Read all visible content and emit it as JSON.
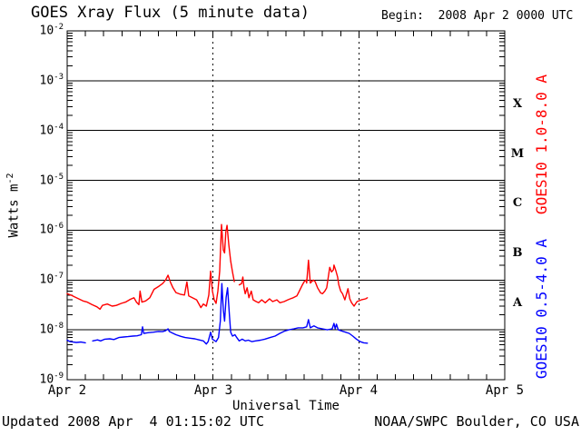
{
  "header": {
    "title": "GOES Xray Flux (5 minute data)",
    "begin": "Begin:  2008 Apr 2 0000 UTC"
  },
  "footer": {
    "updated": "Updated 2008 Apr  4 01:15:02 UTC",
    "source": "NOAA/SWPC Boulder, CO USA"
  },
  "colors": {
    "long_channel": "#ff0000",
    "short_channel": "#0000ff",
    "axis": "#000000",
    "background": "#ffffff"
  },
  "chart_data": {
    "type": "line",
    "title": "GOES Xray Flux (5 minute data)",
    "xlabel": "Universal Time",
    "ylabel_base": "Watts m",
    "ylabel_exp": "-2",
    "y_scale": "log",
    "ylim": [
      1e-09,
      0.01
    ],
    "y_ticks": [
      {
        "base": "10",
        "exp": "-2"
      },
      {
        "base": "10",
        "exp": "-3"
      },
      {
        "base": "10",
        "exp": "-4"
      },
      {
        "base": "10",
        "exp": "-5"
      },
      {
        "base": "10",
        "exp": "-6"
      },
      {
        "base": "10",
        "exp": "-7"
      },
      {
        "base": "10",
        "exp": "-8"
      },
      {
        "base": "10",
        "exp": "-9"
      }
    ],
    "x_unit": "hours since 2008 Apr 2 0000 UTC",
    "xlim_hours": [
      0,
      72
    ],
    "x_tick_labels": [
      "Apr 2",
      "Apr 3",
      "Apr 4",
      "Apr 5"
    ],
    "x_tick_hours": [
      0,
      24,
      48,
      72
    ],
    "day_marker_hours": [
      24,
      48
    ],
    "hour_tick_step": 3,
    "grid": "horizontal decade lines, dotted vertical day lines",
    "flare_classes": [
      "X",
      "M",
      "C",
      "B",
      "A"
    ],
    "flare_class_center_exponents": [
      -3.5,
      -4.5,
      -5.5,
      -6.5,
      -7.5
    ],
    "series": [
      {
        "name": "GOES10 1.0-8.0 A",
        "color": "#ff0000",
        "points": [
          [
            0,
            5.3e-08
          ],
          [
            0.6,
            5e-08
          ],
          [
            1.2,
            4.6e-08
          ],
          [
            1.9,
            4.2e-08
          ],
          [
            2.6,
            3.8e-08
          ],
          [
            3.3,
            3.6e-08
          ],
          [
            4.1,
            3.2e-08
          ],
          [
            4.9,
            2.9e-08
          ],
          [
            5.4,
            2.6e-08
          ],
          [
            5.8,
            3.1e-08
          ],
          [
            6.6,
            3.3e-08
          ],
          [
            7.4,
            3e-08
          ],
          [
            8.1,
            3.1e-08
          ],
          [
            8.9,
            3.4e-08
          ],
          [
            9.6,
            3.6e-08
          ],
          [
            10.4,
            4.1e-08
          ],
          [
            11.0,
            4.4e-08
          ],
          [
            11.4,
            3.6e-08
          ],
          [
            11.8,
            3.2e-08
          ],
          [
            12.0,
            6e-08
          ],
          [
            12.3,
            3.6e-08
          ],
          [
            12.9,
            3.8e-08
          ],
          [
            13.6,
            4.4e-08
          ],
          [
            14.3,
            6.5e-08
          ],
          [
            15.1,
            7.5e-08
          ],
          [
            15.7,
            8.5e-08
          ],
          [
            16.2,
            1e-07
          ],
          [
            16.6,
            1.25e-07
          ],
          [
            17.0,
            9e-08
          ],
          [
            17.4,
            7e-08
          ],
          [
            17.9,
            5.6e-08
          ],
          [
            18.6,
            5.2e-08
          ],
          [
            19.3,
            5e-08
          ],
          [
            19.7,
            9.2e-08
          ],
          [
            20.0,
            4.8e-08
          ],
          [
            20.6,
            4.4e-08
          ],
          [
            21.3,
            4e-08
          ],
          [
            22.0,
            2.8e-08
          ],
          [
            22.4,
            3.3e-08
          ],
          [
            22.9,
            3e-08
          ],
          [
            23.3,
            5e-08
          ],
          [
            23.6,
            1.5e-07
          ],
          [
            23.9,
            6e-08
          ],
          [
            24.2,
            4e-08
          ],
          [
            24.5,
            3.4e-08
          ],
          [
            24.8,
            6e-08
          ],
          [
            25.1,
            1.5e-07
          ],
          [
            25.4,
            1.3e-06
          ],
          [
            25.7,
            4e-07
          ],
          [
            25.9,
            3.5e-07
          ],
          [
            26.1,
            9e-07
          ],
          [
            26.3,
            1.25e-06
          ],
          [
            26.6,
            5e-07
          ],
          [
            26.9,
            2.4e-07
          ],
          [
            27.2,
            1.45e-07
          ],
          [
            27.5,
            9.3e-08
          ],
          null,
          [
            28.3,
            8e-08
          ],
          [
            28.7,
            8.5e-08
          ],
          [
            28.9,
            1.15e-07
          ],
          [
            29.1,
            7e-08
          ],
          [
            29.3,
            5.3e-08
          ],
          [
            29.6,
            7e-08
          ],
          [
            29.9,
            4.4e-08
          ],
          [
            30.3,
            6e-08
          ],
          [
            30.6,
            4e-08
          ],
          [
            31.1,
            3.7e-08
          ],
          [
            31.5,
            3.5e-08
          ],
          [
            32.0,
            4e-08
          ],
          [
            32.6,
            3.5e-08
          ],
          [
            33.3,
            4.2e-08
          ],
          [
            33.8,
            3.7e-08
          ],
          [
            34.5,
            4e-08
          ],
          [
            35.0,
            3.5e-08
          ],
          [
            35.7,
            3.7e-08
          ],
          [
            36.3,
            4e-08
          ],
          [
            36.7,
            4.2e-08
          ],
          [
            37.2,
            4.4e-08
          ],
          [
            37.8,
            4.8e-08
          ],
          [
            38.2,
            6e-08
          ],
          [
            38.7,
            8e-08
          ],
          [
            39.0,
            9.3e-08
          ],
          [
            39.3,
            1e-07
          ],
          [
            39.4,
            8.7e-08
          ],
          [
            39.7,
            2.5e-07
          ],
          [
            40.0,
            8.7e-08
          ],
          [
            40.5,
            1e-07
          ],
          [
            40.8,
            9.3e-08
          ],
          [
            41.2,
            7e-08
          ],
          [
            41.7,
            5.5e-08
          ],
          [
            42.0,
            5.3e-08
          ],
          [
            42.4,
            6e-08
          ],
          [
            42.7,
            7e-08
          ],
          [
            43.2,
            1.8e-07
          ],
          [
            43.5,
            1.45e-07
          ],
          [
            43.8,
            1.6e-07
          ],
          [
            43.9,
            2e-07
          ],
          [
            44.2,
            1.55e-07
          ],
          [
            44.5,
            1.15e-07
          ],
          [
            44.7,
            8e-08
          ],
          [
            45.0,
            6e-08
          ],
          [
            45.3,
            5.3e-08
          ],
          [
            45.7,
            4e-08
          ],
          [
            46.2,
            6.7e-08
          ],
          [
            46.5,
            4.2e-08
          ],
          [
            46.8,
            3.5e-08
          ],
          [
            47.2,
            3e-08
          ],
          [
            47.7,
            3.7e-08
          ],
          [
            48.4,
            4e-08
          ],
          [
            49.1,
            4.2e-08
          ],
          [
            49.4,
            4.4e-08
          ]
        ]
      },
      {
        "name": "GOES10 0.5-4.0 A",
        "color": "#0000ff",
        "points": [
          [
            0,
            6.2e-09
          ],
          [
            0.5,
            5.8e-09
          ],
          [
            1.5,
            5.6e-09
          ],
          [
            2.3,
            5.7e-09
          ],
          [
            3.0,
            5.5e-09
          ],
          null,
          [
            4.2,
            6e-09
          ],
          [
            5.0,
            6.3e-09
          ],
          [
            5.5,
            6e-09
          ],
          [
            6.2,
            6.5e-09
          ],
          [
            7.0,
            6.6e-09
          ],
          [
            7.7,
            6.4e-09
          ],
          [
            8.5,
            7e-09
          ],
          [
            9.3,
            7.2e-09
          ],
          [
            10.0,
            7.3e-09
          ],
          [
            10.8,
            7.5e-09
          ],
          [
            11.5,
            7.6e-09
          ],
          [
            12.2,
            8e-09
          ],
          [
            12.4,
            1.15e-08
          ],
          [
            12.6,
            8.5e-09
          ],
          [
            13.4,
            8.8e-09
          ],
          [
            14.2,
            9e-09
          ],
          [
            15.0,
            9.3e-09
          ],
          [
            15.7,
            9.2e-09
          ],
          [
            16.2,
            9.6e-09
          ],
          [
            16.6,
            1.05e-08
          ],
          [
            16.8,
            9.3e-09
          ],
          [
            17.2,
            8.8e-09
          ],
          [
            17.9,
            8e-09
          ],
          [
            18.7,
            7.4e-09
          ],
          [
            19.4,
            7e-09
          ],
          [
            20.2,
            6.8e-09
          ],
          [
            21.0,
            6.6e-09
          ],
          [
            21.7,
            6.3e-09
          ],
          [
            22.4,
            6e-09
          ],
          [
            22.9,
            5.2e-09
          ],
          [
            23.2,
            5.8e-09
          ],
          [
            23.6,
            9e-09
          ],
          [
            23.9,
            6.5e-09
          ],
          [
            24.5,
            5.8e-09
          ],
          [
            24.9,
            7e-09
          ],
          [
            25.2,
            1.5e-08
          ],
          [
            25.45,
            8.5e-08
          ],
          [
            25.7,
            2.5e-08
          ],
          [
            25.9,
            1.5e-08
          ],
          [
            26.15,
            4.5e-08
          ],
          [
            26.4,
            7e-08
          ],
          [
            26.7,
            2e-08
          ],
          [
            26.9,
            9e-09
          ],
          [
            27.2,
            7.5e-09
          ],
          [
            27.6,
            8e-09
          ],
          [
            27.9,
            7e-09
          ],
          [
            28.3,
            6e-09
          ],
          [
            28.8,
            6.5e-09
          ],
          [
            29.3,
            6e-09
          ],
          [
            29.8,
            6.2e-09
          ],
          [
            30.4,
            5.8e-09
          ],
          [
            31.0,
            6e-09
          ],
          [
            31.8,
            6.2e-09
          ],
          [
            32.5,
            6.5e-09
          ],
          [
            33.4,
            7e-09
          ],
          [
            34.2,
            7.5e-09
          ],
          [
            35.0,
            8.5e-09
          ],
          [
            35.8,
            9.5e-09
          ],
          [
            36.5,
            1e-08
          ],
          [
            37.3,
            1.05e-08
          ],
          [
            38.0,
            1.1e-08
          ],
          [
            38.8,
            1.1e-08
          ],
          [
            39.4,
            1.15e-08
          ],
          [
            39.7,
            1.6e-08
          ],
          [
            40.0,
            1.1e-08
          ],
          [
            40.6,
            1.2e-08
          ],
          [
            41.2,
            1.1e-08
          ],
          [
            42.0,
            1.05e-08
          ],
          [
            42.8,
            1e-08
          ],
          [
            43.6,
            1.05e-08
          ],
          [
            43.9,
            1.35e-08
          ],
          [
            44.1,
            1.05e-08
          ],
          [
            44.3,
            1.3e-08
          ],
          [
            44.6,
            1e-08
          ],
          [
            45.2,
            9.5e-09
          ],
          [
            45.8,
            9e-09
          ],
          [
            46.4,
            8.5e-09
          ],
          [
            47.0,
            7.5e-09
          ],
          [
            47.6,
            6.5e-09
          ],
          [
            48.2,
            5.8e-09
          ],
          [
            48.8,
            5.5e-09
          ],
          [
            49.4,
            5.4e-09
          ]
        ]
      }
    ]
  }
}
